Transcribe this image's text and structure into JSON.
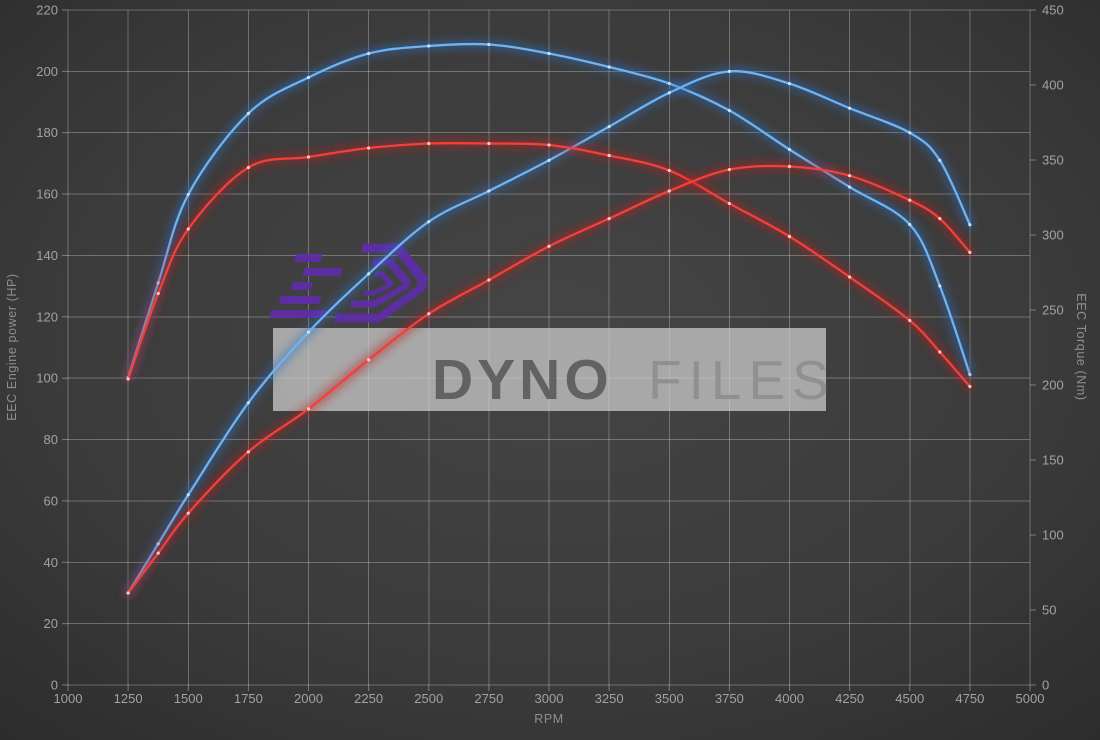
{
  "watermark": {
    "brand_bold": "DYNO",
    "brand_light": "FILES",
    "band_color": "#d0d0d0",
    "logo_color": "#5e2ea6"
  },
  "chart_data": {
    "type": "line",
    "title": "",
    "xlabel": "RPM",
    "ylabel_left": "EEC Engine power (HP)",
    "ylabel_right": "EEC Torque (Nm)",
    "x_range": [
      1000,
      5000
    ],
    "y_left_range": [
      0,
      220
    ],
    "y_right_range": [
      0,
      450
    ],
    "grid": true,
    "legend_position": "none",
    "x_ticks": [
      1000,
      1250,
      1500,
      1750,
      2000,
      2250,
      2500,
      2750,
      3000,
      3250,
      3500,
      3750,
      4000,
      4250,
      4500,
      4750,
      5000
    ],
    "y_left_ticks": [
      0,
      20,
      40,
      60,
      80,
      100,
      120,
      140,
      160,
      180,
      200,
      220
    ],
    "y_right_ticks": [
      0,
      50,
      100,
      150,
      200,
      250,
      300,
      350,
      400,
      450
    ],
    "rpm": [
      1250,
      1375,
      1500,
      1750,
      2000,
      2250,
      2500,
      2750,
      3000,
      3250,
      3500,
      3750,
      4000,
      4250,
      4500,
      4625,
      4750
    ],
    "series": [
      {
        "name": "torque-blue",
        "axis": "right",
        "unit": "Nm",
        "color": "#6fb3f2",
        "glow": "#2f6fc0",
        "marker_color": "#cfe8ff",
        "peak": {
          "value": 427,
          "rpm": 2750
        },
        "values": [
          205,
          268,
          327,
          381,
          405,
          421,
          426,
          427,
          421,
          412,
          401,
          383,
          357,
          332,
          307,
          266,
          207
        ]
      },
      {
        "name": "power-blue",
        "axis": "left",
        "unit": "HP",
        "color": "#6fb3f2",
        "glow": "#2f6fc0",
        "marker_color": "#cfe8ff",
        "peak": {
          "value": 200,
          "rpm": 3750
        },
        "values": [
          30,
          46,
          62,
          92,
          115,
          134,
          151,
          161,
          171,
          182,
          193,
          200,
          196,
          188,
          180,
          171,
          150
        ]
      },
      {
        "name": "torque-red",
        "axis": "right",
        "unit": "Nm",
        "color": "#f2403a",
        "glow": "#c01f1f",
        "marker_color": "#ffd7d4",
        "peak": {
          "value": 361,
          "rpm": 2500
        },
        "values": [
          204,
          261,
          304,
          345,
          352,
          358,
          361,
          361,
          360,
          353,
          343,
          321,
          299,
          272,
          243,
          222,
          199
        ]
      },
      {
        "name": "power-red",
        "axis": "left",
        "unit": "HP",
        "color": "#f2403a",
        "glow": "#c01f1f",
        "marker_color": "#ffd7d4",
        "peak": {
          "value": 169,
          "rpm": 4000
        },
        "values": [
          30,
          43,
          56,
          76,
          90,
          106,
          121,
          132,
          143,
          152,
          161,
          168,
          169,
          166,
          158,
          152,
          141
        ]
      }
    ]
  }
}
